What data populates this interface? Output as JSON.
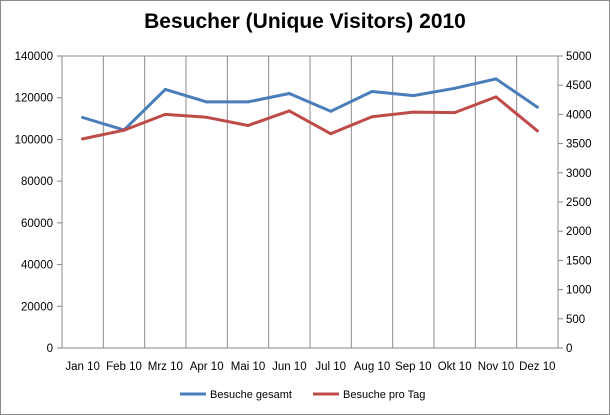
{
  "chart_data": {
    "type": "line",
    "title": "Besucher (Unique Visitors) 2010",
    "categories": [
      "Jan 10",
      "Feb 10",
      "Mrz 10",
      "Apr 10",
      "Mai 10",
      "Jun 10",
      "Jul 10",
      "Aug 10",
      "Sep 10",
      "Okt 10",
      "Nov 10",
      "Dez 10"
    ],
    "series": [
      {
        "name": "Besuche gesamt",
        "axis": "left",
        "color": "#4a7ebb",
        "values": [
          110500,
          104500,
          124000,
          118000,
          118000,
          122000,
          113500,
          123000,
          121000,
          124500,
          129000,
          115500
        ]
      },
      {
        "name": "Besuche pro Tag",
        "axis": "right",
        "color": "#be4b48",
        "values": [
          3580,
          3730,
          4000,
          3950,
          3810,
          4060,
          3670,
          3960,
          4040,
          4030,
          4300,
          3720
        ]
      }
    ],
    "y_left": {
      "ylim": [
        0,
        140000
      ],
      "ticks": [
        "0",
        "20000",
        "40000",
        "60000",
        "80000",
        "100000",
        "120000",
        "140000"
      ]
    },
    "y_right": {
      "ylim": [
        0,
        5000
      ],
      "ticks": [
        "0",
        "500",
        "1000",
        "1500",
        "2000",
        "2500",
        "3000",
        "3500",
        "4000",
        "4500",
        "5000"
      ]
    },
    "grid": "vertical",
    "legend_position": "bottom"
  }
}
